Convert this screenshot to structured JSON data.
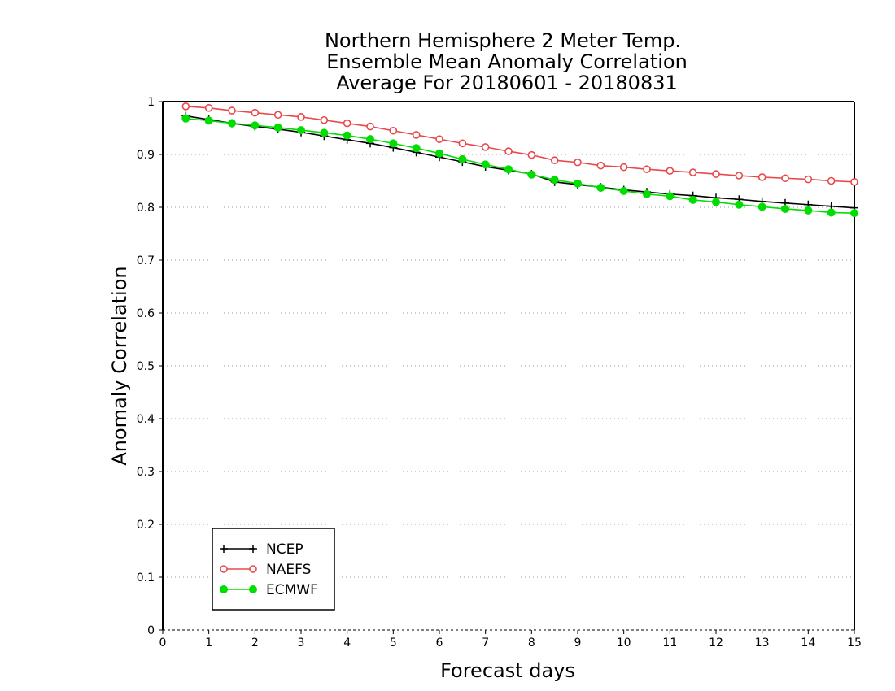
{
  "chart_data": {
    "type": "line",
    "title": [
      "Northern Hemisphere 2 Meter Temp.",
      "Ensemble Mean Anomaly Correlation",
      "Average For 20180601 - 20180831"
    ],
    "xlabel": "Forecast days",
    "ylabel": "Anomaly Correlation",
    "xlim": [
      0,
      15
    ],
    "ylim": [
      0,
      1
    ],
    "xticks": [
      0,
      1,
      2,
      3,
      4,
      5,
      6,
      7,
      8,
      9,
      10,
      11,
      12,
      13,
      14,
      15
    ],
    "xtick_labels": [
      "0",
      "1",
      "2",
      "3",
      "4",
      "5",
      "6",
      "7",
      "8",
      "9",
      "10",
      "11",
      "12",
      "13",
      "14",
      "15"
    ],
    "yticks": [
      0,
      0.1,
      0.2,
      0.3,
      0.4,
      0.5,
      0.6,
      0.7,
      0.8,
      0.9,
      1
    ],
    "ytick_labels": [
      "0",
      "0.1",
      "0.2",
      "0.3",
      "0.4",
      "0.5",
      "0.6",
      "0.7",
      "0.8",
      "0.9",
      "1"
    ],
    "grid": "horizontal dotted",
    "legend_position": "bottom-left",
    "x": [
      0.5,
      1,
      1.5,
      2,
      2.5,
      3,
      3.5,
      4,
      4.5,
      5,
      5.5,
      6,
      6.5,
      7,
      7.5,
      8,
      8.5,
      9,
      9.5,
      10,
      10.5,
      11,
      11.5,
      12,
      12.5,
      13,
      13.5,
      14,
      14.5,
      15
    ],
    "series": [
      {
        "name": "NCEP",
        "color": "#000000",
        "marker": "plus",
        "values": [
          0.973,
          0.966,
          0.959,
          0.953,
          0.948,
          0.942,
          0.935,
          0.928,
          0.921,
          0.913,
          0.904,
          0.895,
          0.886,
          0.877,
          0.87,
          0.863,
          0.848,
          0.843,
          0.838,
          0.833,
          0.829,
          0.825,
          0.822,
          0.818,
          0.815,
          0.811,
          0.808,
          0.805,
          0.802,
          0.799
        ]
      },
      {
        "name": "NAEFS",
        "color": "#e8484a",
        "marker": "open-circle",
        "values": [
          0.991,
          0.988,
          0.983,
          0.979,
          0.975,
          0.971,
          0.965,
          0.959,
          0.953,
          0.945,
          0.937,
          0.929,
          0.921,
          0.914,
          0.906,
          0.899,
          0.889,
          0.885,
          0.879,
          0.876,
          0.872,
          0.869,
          0.866,
          0.863,
          0.86,
          0.857,
          0.855,
          0.853,
          0.85,
          0.848
        ]
      },
      {
        "name": "ECMWF",
        "color": "#00dd00",
        "marker": "filled-circle",
        "values": [
          0.968,
          0.964,
          0.959,
          0.955,
          0.951,
          0.946,
          0.941,
          0.936,
          0.929,
          0.921,
          0.912,
          0.902,
          0.891,
          0.881,
          0.872,
          0.862,
          0.852,
          0.845,
          0.837,
          0.831,
          0.825,
          0.821,
          0.814,
          0.81,
          0.805,
          0.801,
          0.797,
          0.794,
          0.79,
          0.789
        ]
      }
    ]
  }
}
